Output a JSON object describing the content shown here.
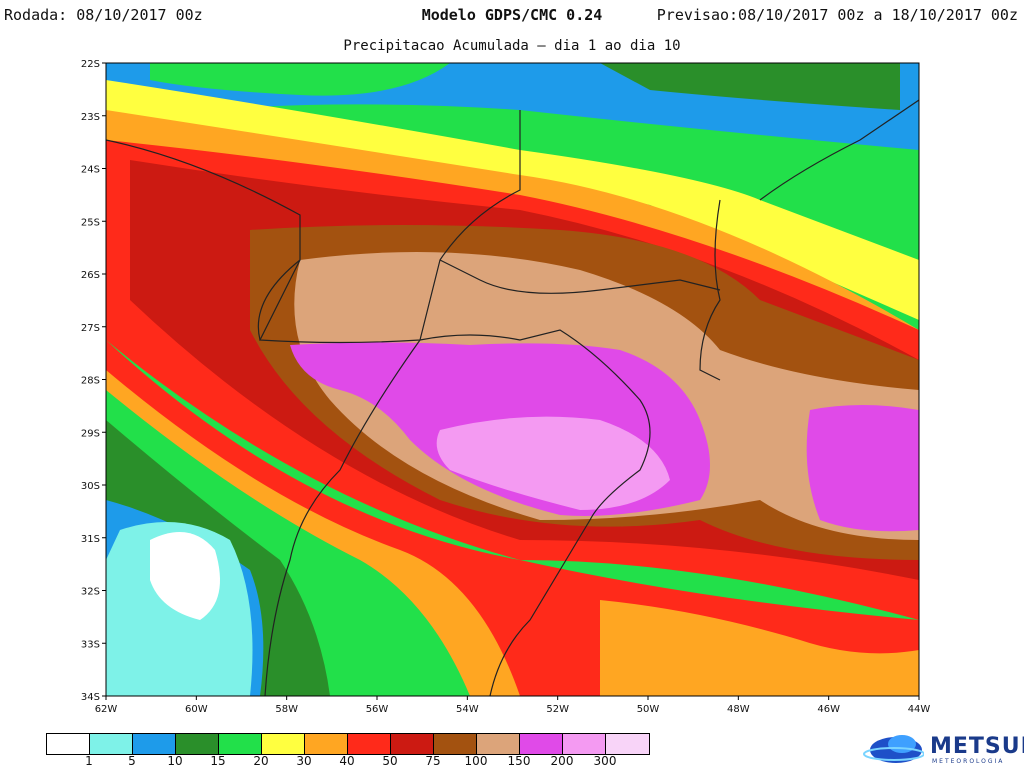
{
  "header": {
    "left": "Rodada: 08/10/2017 00z",
    "center": "Modelo GDPS/CMC 0.24",
    "right": "Previsao:08/10/2017 00z a 18/10/2017 00z"
  },
  "subtitle": "Precipitacao Acumulada – dia 1 ao dia 10",
  "axes": {
    "lat_labels": [
      "22S",
      "23S",
      "24S",
      "25S",
      "26S",
      "27S",
      "28S",
      "29S",
      "30S",
      "31S",
      "32S",
      "33S",
      "34S"
    ],
    "lon_labels": [
      "62W",
      "60W",
      "58W",
      "56W",
      "54W",
      "52W",
      "50W",
      "48W",
      "46W",
      "44W"
    ]
  },
  "legend": {
    "thresholds": [
      "1",
      "5",
      "10",
      "15",
      "20",
      "30",
      "40",
      "50",
      "75",
      "100",
      "150",
      "200",
      "300"
    ],
    "colors": [
      "#ffffff",
      "#7ef2e8",
      "#1e9bea",
      "#2a8f2a",
      "#22e04a",
      "#ffff40",
      "#ffa622",
      "#ff2a1a",
      "#cc1a12",
      "#a35210",
      "#dca47a",
      "#e04ae8",
      "#f49af2",
      "#f8d4f8"
    ]
  },
  "logo": {
    "text": "METSUL",
    "sub": "METEOROLOGIA",
    "icon": "globe-icon"
  }
}
